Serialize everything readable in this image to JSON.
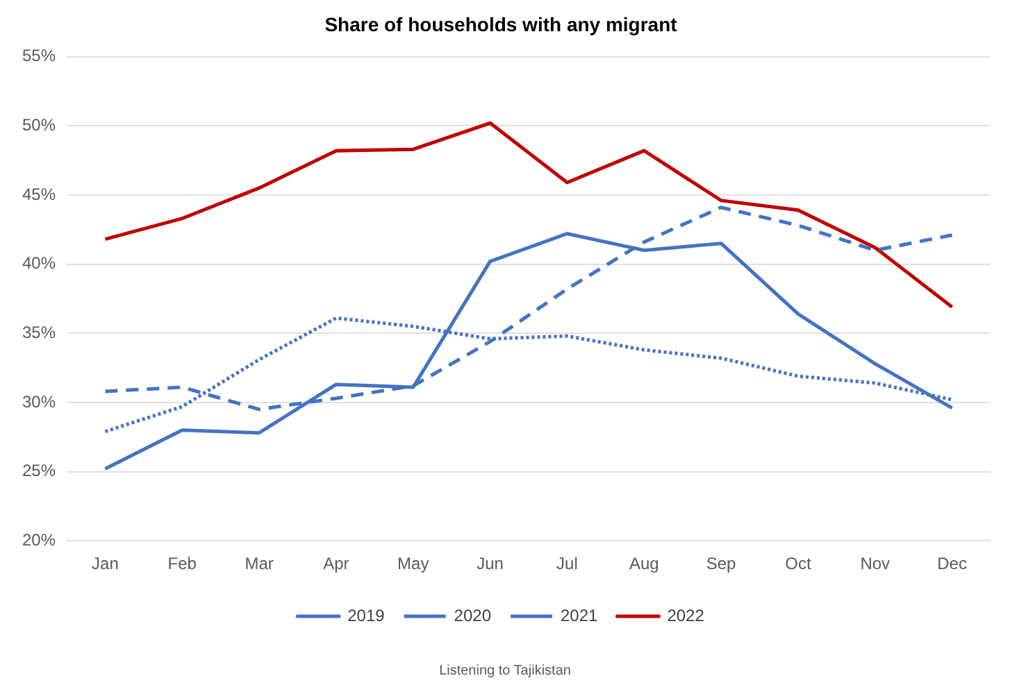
{
  "chart_data": {
    "type": "line",
    "title": "Share of households with any migrant",
    "categories": [
      "Jan",
      "Feb",
      "Mar",
      "Apr",
      "May",
      "Jun",
      "Jul",
      "Aug",
      "Sep",
      "Oct",
      "Nov",
      "Dec"
    ],
    "series": [
      {
        "name": "2019",
        "color": "#4472c4",
        "line_style": "solid",
        "values": [
          25.2,
          28.0,
          27.8,
          31.3,
          31.1,
          40.2,
          42.2,
          41.0,
          41.5,
          36.4,
          32.8,
          29.6
        ]
      },
      {
        "name": "2020",
        "color": "#4472c4",
        "line_style": "dotted",
        "values": [
          27.9,
          29.7,
          33.1,
          36.1,
          35.5,
          34.6,
          34.8,
          33.8,
          33.2,
          31.9,
          31.4,
          30.2
        ]
      },
      {
        "name": "2021",
        "color": "#4472c4",
        "line_style": "dashed",
        "values": [
          30.8,
          31.1,
          29.5,
          30.3,
          31.2,
          34.4,
          38.2,
          41.6,
          44.1,
          42.8,
          41.0,
          42.1
        ]
      },
      {
        "name": "2022",
        "color": "#c00000",
        "line_style": "solid",
        "values": [
          41.8,
          43.3,
          45.5,
          48.2,
          48.3,
          50.2,
          45.9,
          48.2,
          44.6,
          43.9,
          41.2,
          36.9
        ]
      }
    ],
    "ylim": [
      20,
      55
    ],
    "yticks": [
      {
        "value": 20,
        "label": "20%"
      },
      {
        "value": 25,
        "label": "25%"
      },
      {
        "value": 30,
        "label": "30%"
      },
      {
        "value": 35,
        "label": "35%"
      },
      {
        "value": 40,
        "label": "40%"
      },
      {
        "value": 45,
        "label": "45%"
      },
      {
        "value": 50,
        "label": "50%"
      },
      {
        "value": 55,
        "label": "55%"
      }
    ],
    "grid": "y",
    "legend": "bottom",
    "marker": "none",
    "annotations": [
      "Listening to Tajikistan"
    ]
  }
}
